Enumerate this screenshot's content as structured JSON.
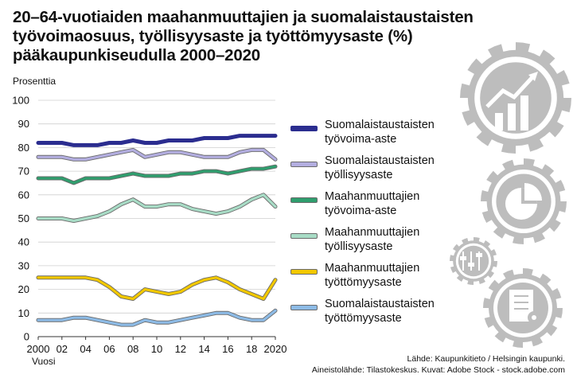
{
  "title_lines": [
    "20–64-vuotiaiden maahanmuuttajien ja suomalaistaustaisten",
    "työvoimaosuus, työllisyysaste ja työttömyysaste (%)",
    "pääkaupunkiseudulla 2000–2020"
  ],
  "source_lines": [
    "Lähde: Kaupunkitieto / Helsingin kaupunki.",
    "Aineistolähde: Tilastokeskus. Kuvat: Adobe Stock - stock.adobe.com"
  ],
  "decorative_icons": [
    "gear-growth-chart-icon",
    "gear-pie-chart-icon",
    "gear-sliders-icon",
    "gear-report-icon"
  ],
  "chart_data": {
    "type": "line",
    "ylabel": "Prosenttia",
    "xlabel": "Vuosi",
    "ylim": [
      0,
      100
    ],
    "yticks": [
      0,
      10,
      20,
      30,
      40,
      50,
      60,
      70,
      80,
      90,
      100
    ],
    "xticks": [
      {
        "value": 2000,
        "label": "2000"
      },
      {
        "value": 2002,
        "label": "02"
      },
      {
        "value": 2004,
        "label": "04"
      },
      {
        "value": 2006,
        "label": "06"
      },
      {
        "value": 2008,
        "label": "08"
      },
      {
        "value": 2010,
        "label": "10"
      },
      {
        "value": 2012,
        "label": "12"
      },
      {
        "value": 2014,
        "label": "14"
      },
      {
        "value": 2016,
        "label": "16"
      },
      {
        "value": 2018,
        "label": "18"
      },
      {
        "value": 2020,
        "label": "2020"
      }
    ],
    "grid": true,
    "legend_position": "right",
    "x": [
      2000,
      2001,
      2002,
      2003,
      2004,
      2005,
      2006,
      2007,
      2008,
      2009,
      2010,
      2011,
      2012,
      2013,
      2014,
      2015,
      2016,
      2017,
      2018,
      2019,
      2020
    ],
    "series": [
      {
        "name": "Suomalaistaustaisten työvoima-aste",
        "color": "#2b2d8f",
        "values": [
          82,
          82,
          82,
          81,
          81,
          81,
          82,
          82,
          83,
          82,
          82,
          83,
          83,
          83,
          84,
          84,
          84,
          85,
          85,
          85,
          85
        ]
      },
      {
        "name": "Suomalaistaustaisten työllisyysaste",
        "color": "#b3aee0",
        "values": [
          76,
          76,
          76,
          75,
          75,
          76,
          77,
          78,
          79,
          76,
          77,
          78,
          78,
          77,
          76,
          76,
          76,
          78,
          79,
          79,
          75
        ]
      },
      {
        "name": "Maahanmuuttajien työvoima-aste",
        "color": "#2f9e6e",
        "values": [
          67,
          67,
          67,
          65,
          67,
          67,
          67,
          68,
          69,
          68,
          68,
          68,
          69,
          69,
          70,
          70,
          69,
          70,
          71,
          71,
          72
        ]
      },
      {
        "name": "Maahanmuuttajien työllisyysaste",
        "color": "#a8dcc6",
        "values": [
          50,
          50,
          50,
          49,
          50,
          51,
          53,
          56,
          58,
          55,
          55,
          56,
          56,
          54,
          53,
          52,
          53,
          55,
          58,
          60,
          55
        ]
      },
      {
        "name": "Maahanmuuttajien työttömyysaste",
        "color": "#f2c800",
        "values": [
          25,
          25,
          25,
          25,
          25,
          24,
          21,
          17,
          16,
          20,
          19,
          18,
          19,
          22,
          24,
          25,
          23,
          20,
          18,
          16,
          24
        ]
      },
      {
        "name": "Suomalaistaustaisten työttömyysaste",
        "color": "#8dbbe6",
        "values": [
          7,
          7,
          7,
          8,
          8,
          7,
          6,
          5,
          5,
          7,
          6,
          6,
          7,
          8,
          9,
          10,
          10,
          8,
          7,
          7,
          11
        ]
      }
    ]
  }
}
